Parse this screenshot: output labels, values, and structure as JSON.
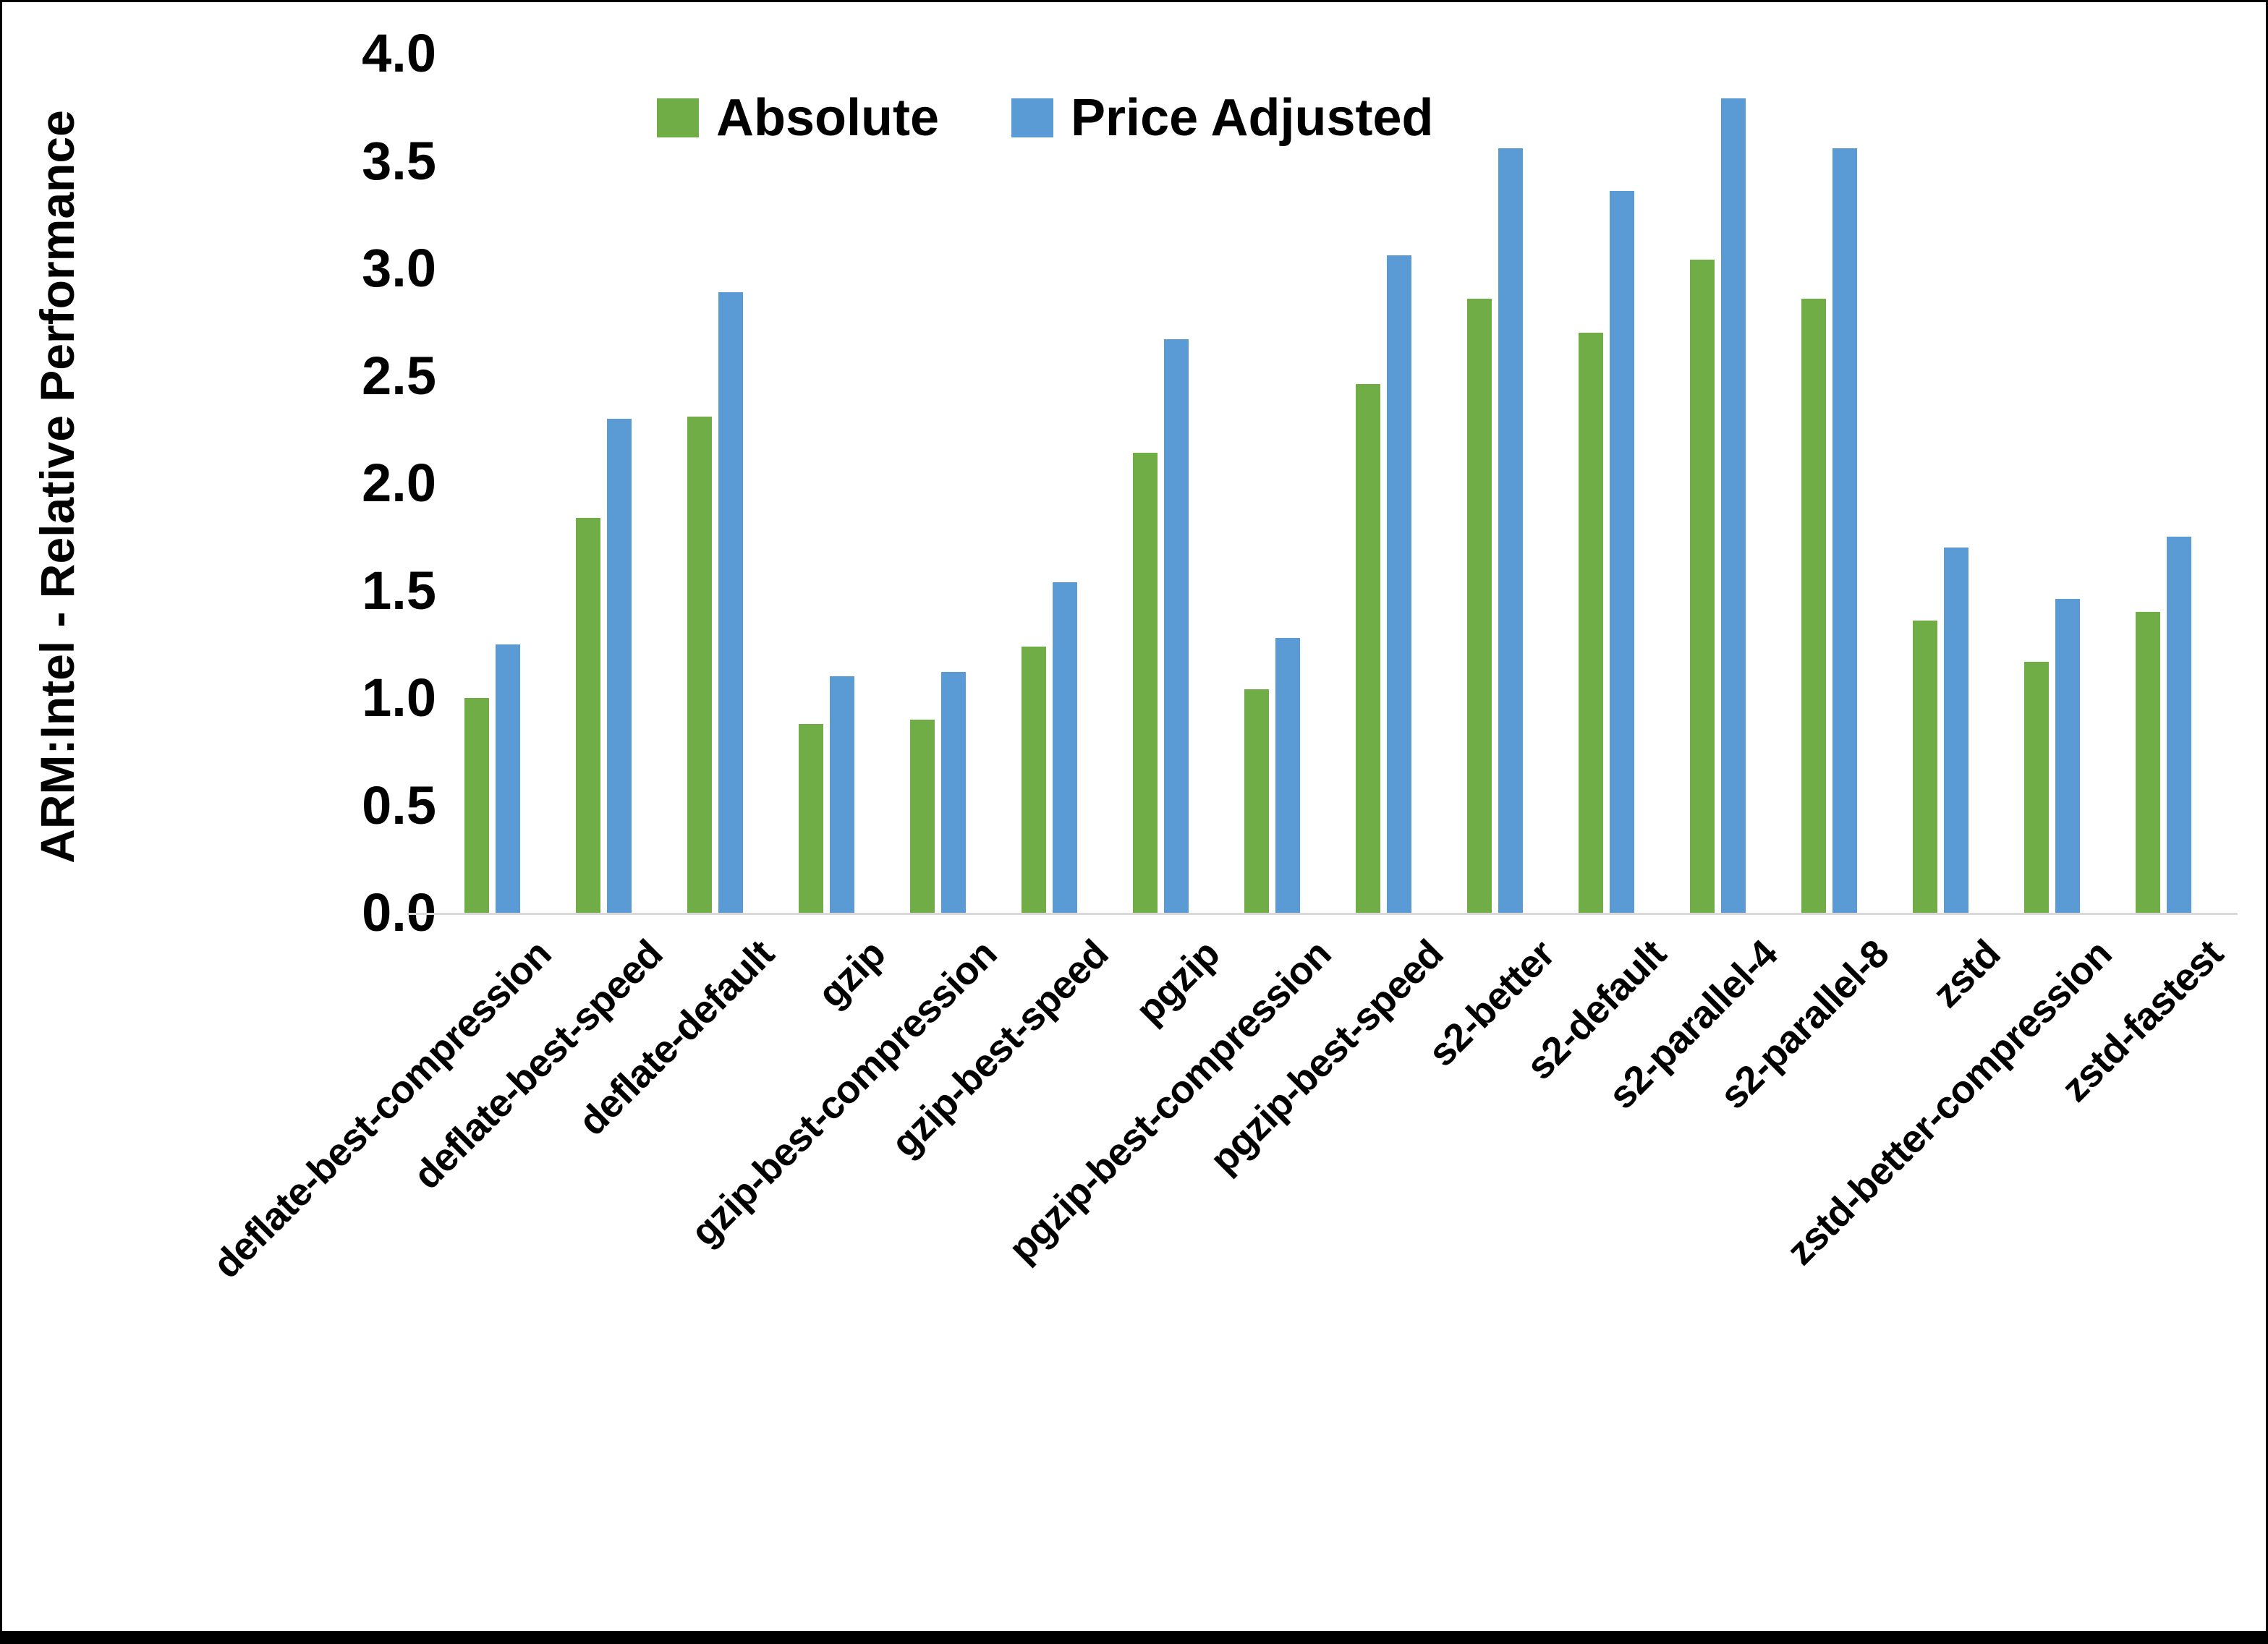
{
  "y_axis": {
    "title": "ARM:Intel - Relative Performance"
  },
  "legend": [
    {
      "label": "Absolute",
      "color": "#70AD47"
    },
    {
      "label": "Price Adjusted",
      "color": "#5B9BD5"
    }
  ],
  "chart_data": {
    "type": "bar",
    "title": "",
    "xlabel": "",
    "ylabel": "ARM:Intel - Relative Performance",
    "ylim": [
      0.0,
      4.0
    ],
    "yticks": [
      0.0,
      0.5,
      1.0,
      1.5,
      2.0,
      2.5,
      3.0,
      3.5,
      4.0
    ],
    "grid": false,
    "legend_position": "top-center",
    "baseline_color": "#d9d9d9",
    "categories": [
      "deflate-best-compression",
      "deflate-best-speed",
      "deflate-default",
      "gzip",
      "gzip-best-compression",
      "gzip-best-speed",
      "pgzip",
      "pgzip-best-compression",
      "pgzip-best-speed",
      "s2-better",
      "s2-default",
      "s2-parallel-4",
      "s2-parallel-8",
      "zstd",
      "zstd-better-compression",
      "zstd-fastest"
    ],
    "series": [
      {
        "name": "Absolute",
        "color": "#70AD47",
        "values": [
          1.0,
          1.84,
          2.31,
          0.88,
          0.9,
          1.24,
          2.14,
          1.04,
          2.46,
          2.86,
          2.7,
          3.04,
          2.86,
          1.36,
          1.17,
          1.4
        ]
      },
      {
        "name": "Price Adjusted",
        "color": "#5B9BD5",
        "values": [
          1.25,
          2.3,
          2.89,
          1.1,
          1.12,
          1.54,
          2.67,
          1.28,
          3.06,
          3.56,
          3.36,
          3.79,
          3.56,
          1.7,
          1.46,
          1.75
        ]
      }
    ]
  }
}
